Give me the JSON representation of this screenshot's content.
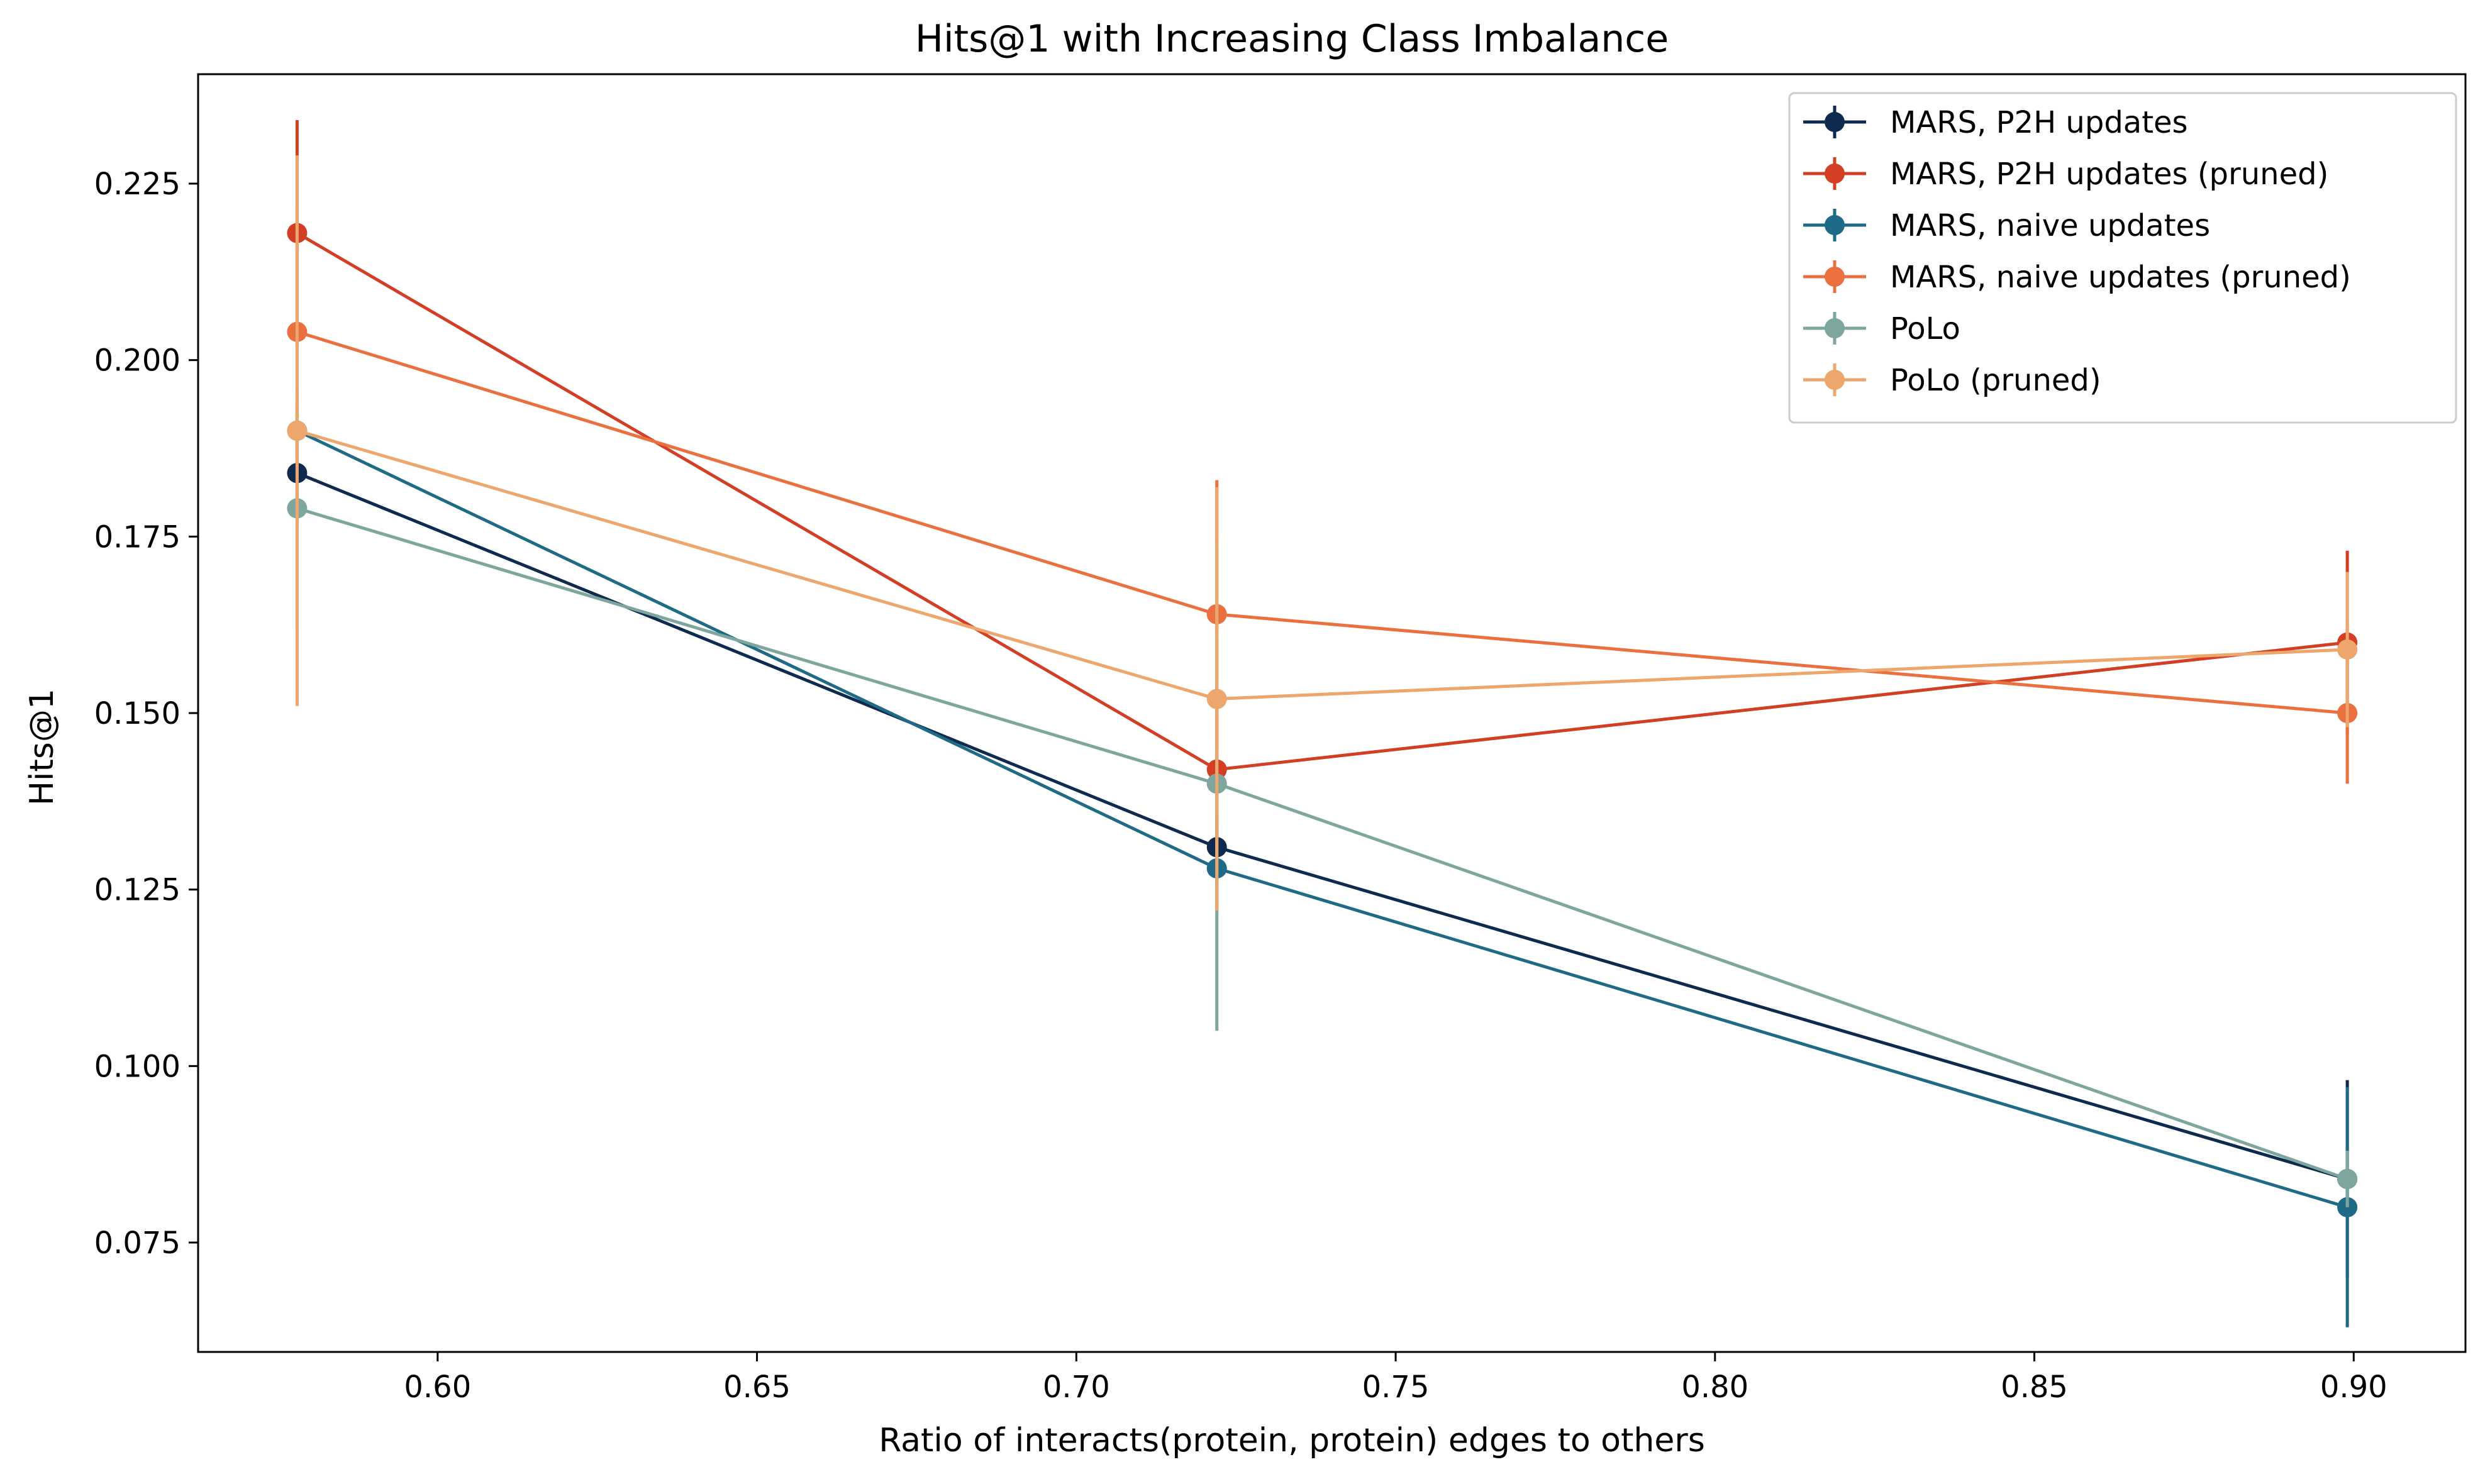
{
  "chart_data": {
    "type": "line",
    "title": "Hits@1 with Increasing Class Imbalance",
    "xlabel": "Ratio of interacts(protein, protein) edges to others",
    "ylabel": "Hits@1",
    "xlim": [
      0.5625,
      0.9175
    ],
    "ylim": [
      0.0595,
      0.2405
    ],
    "xticks": [
      0.6,
      0.65,
      0.7,
      0.75,
      0.8,
      0.85,
      0.9
    ],
    "yticks": [
      0.075,
      0.1,
      0.125,
      0.15,
      0.175,
      0.2,
      0.225
    ],
    "grid": false,
    "legend_position": "top-right",
    "x": [
      0.578,
      0.722,
      0.899
    ],
    "series": [
      {
        "name": "MARS, P2H updates",
        "color": "#0f2a4f",
        "values": [
          0.184,
          0.131,
          0.084
        ],
        "err": [
          0.005,
          0.005,
          0.014
        ]
      },
      {
        "name": "MARS, P2H updates (pruned)",
        "color": "#d23f25",
        "values": [
          0.218,
          0.142,
          0.16
        ],
        "err": [
          0.016,
          0.011,
          0.013
        ]
      },
      {
        "name": "MARS, naive updates",
        "color": "#1e6a87",
        "values": [
          0.19,
          0.128,
          0.08
        ],
        "err": [
          0.004,
          0.006,
          0.017
        ]
      },
      {
        "name": "MARS, naive updates (pruned)",
        "color": "#ea7040",
        "values": [
          0.204,
          0.164,
          0.15
        ],
        "err": [
          0.018,
          0.019,
          0.01
        ]
      },
      {
        "name": "PoLo",
        "color": "#7fa59f",
        "values": [
          0.179,
          0.14,
          0.084
        ],
        "err": [
          0.017,
          0.035,
          0.004
        ]
      },
      {
        "name": "PoLo (pruned)",
        "color": "#eda66c",
        "values": [
          0.19,
          0.152,
          0.159
        ],
        "err": [
          0.039,
          0.03,
          0.011
        ]
      }
    ]
  }
}
